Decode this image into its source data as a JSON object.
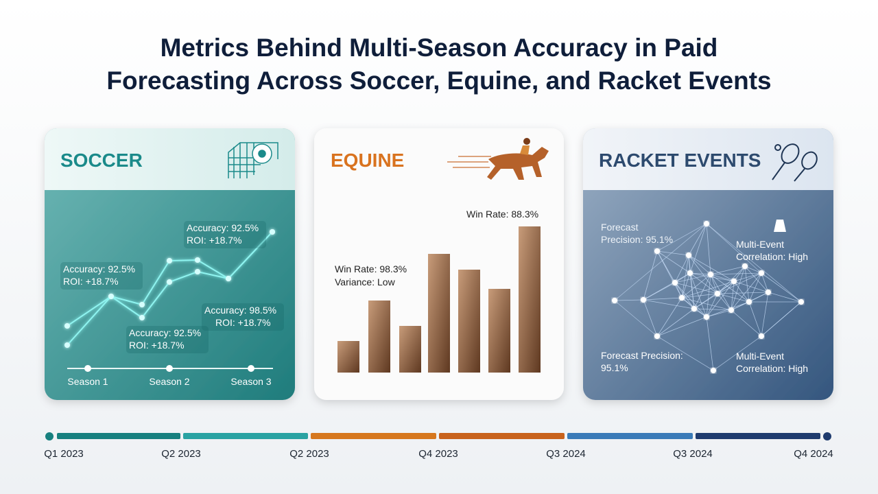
{
  "header": {
    "title_lines": [
      "Metrics Behind Multi-Season Accuracy in Paid",
      "Forecasting Across Soccer, Equine, and Racket Events"
    ]
  },
  "cards": [
    {
      "title": "SOCCER",
      "callouts": [
        {
          "lines": [
            "Accuracy: 92.5%",
            "ROI: +18.7%"
          ]
        },
        {
          "lines": [
            "Accuracy: 92.5%",
            "ROI: +18.7%"
          ]
        },
        {
          "lines": [
            "Accuracy: 92.5%",
            "ROI: +18.7%"
          ]
        },
        {
          "lines": [
            "Accuracy: 98.5%",
            "ROI: +18.7%"
          ]
        }
      ],
      "seasons": [
        "Season 1",
        "Season 2",
        "Season 3"
      ]
    },
    {
      "title": "EQUINE",
      "callouts": [
        {
          "lines": [
            "Win Rate: 88.3%"
          ]
        },
        {
          "lines": [
            "Win Rate: 98.3%",
            "Variance: Low"
          ]
        }
      ]
    },
    {
      "title": "RACKET EVENTS",
      "callouts": [
        {
          "lines": [
            "Forecast",
            "Precision: 95.1%"
          ]
        },
        {
          "lines": [
            "Multi-Event",
            "Correlation: High"
          ]
        },
        {
          "lines": [
            "Forecast Precision:",
            "95.1%"
          ]
        },
        {
          "lines": [
            "Multi-Event",
            "Correlation: High"
          ]
        }
      ]
    }
  ],
  "timeline": {
    "labels": [
      "Q1 2023",
      "Q2 2023",
      "Q2 2023",
      "Q4 2023",
      "Q3 2024",
      "Q3 2024",
      "Q4 2024"
    ]
  }
}
